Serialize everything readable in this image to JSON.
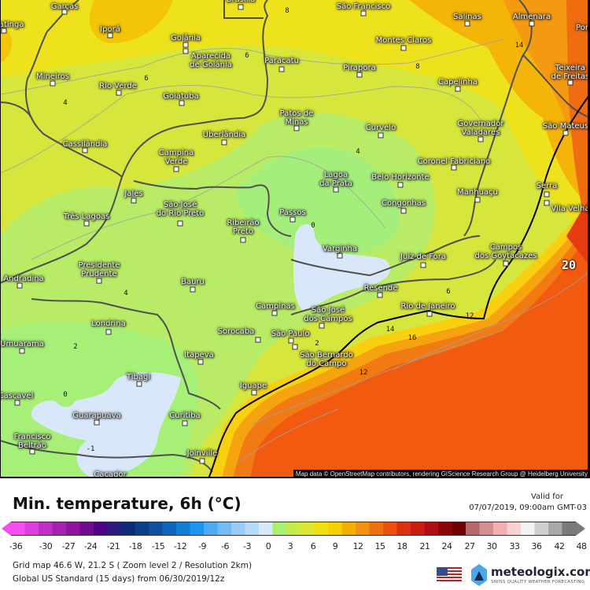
{
  "map": {
    "cities": [
      "Garças",
      "Iporá",
      "Goiânia",
      "Aparecida\nde Goiânia",
      "Paracatu",
      "Mineiros",
      "Rio Verde",
      "Goiatuba",
      "Uberlândia",
      "Cassilândia",
      "Campina\nVerde",
      "Jales",
      "Três Lagoas",
      "São José\ndo Rio Preto",
      "Ribeirão\nPreto",
      "Passos",
      "Brasília",
      "São Francisco",
      "Salinas",
      "Almenara",
      "Montes Claros",
      "Pirapora",
      "Capelinha",
      "Patos de\nMinas",
      "Curvelo",
      "Governador\nValadares",
      "Coronel Fabriciano",
      "Lagoa\nda Prata",
      "Belo Horizonte",
      "Congonhas",
      "Manhuaçu",
      "Serra",
      "Vila Velha",
      "São Mateus",
      "Teixeira\nde Freitas",
      "Porto",
      "Varginha",
      "Juiz de Fora",
      "Campos\ndos Goytacazes",
      "Resende",
      "Rio de Janeiro",
      "São José\ndos Campos",
      "São Paulo",
      "São Bernardo\ndo Campo",
      "Campinas",
      "Sorocaba",
      "Bauru",
      "Presidente\nPrudente",
      "Andradina",
      "Londrina",
      "Umuarama",
      "Itapeva",
      "Tibagi",
      "Iguape",
      "Cascavel",
      "Guarapuava",
      "Curitiba",
      "Francisco\nBeltrão",
      "Joinville",
      "Caçador",
      "Ipatinga"
    ],
    "contour_labels": [
      "8",
      "6",
      "6",
      "4",
      "8",
      "14",
      "4",
      "0",
      "4",
      "2",
      "0",
      "-1",
      "2",
      "6",
      "12",
      "14",
      "16",
      "12",
      "20"
    ],
    "attribution": "Map data © OpenStreetMap contributors, rendering GIScience Research Group @ Heidelberg University"
  },
  "header": {
    "title": "Min. temperature, 6h (°C)",
    "valid_label": "Valid for",
    "valid_date": "07/07/2019, 09:00am GMT-03"
  },
  "legend": {
    "ticks": [
      "-36",
      "-30",
      "-27",
      "-24",
      "-21",
      "-18",
      "-15",
      "-12",
      "-9",
      "-6",
      "-3",
      "0",
      "3",
      "6",
      "9",
      "12",
      "15",
      "18",
      "21",
      "24",
      "27",
      "30",
      "33",
      "36",
      "42",
      "48"
    ],
    "colors": [
      "#f24ef0",
      "#e03ee0",
      "#c42ec8",
      "#a820b0",
      "#8c149c",
      "#6e0c8c",
      "#4e0488",
      "#2a1a80",
      "#0e2a78",
      "#0e3e88",
      "#0e509e",
      "#0e66be",
      "#127ed8",
      "#1a96f0",
      "#4aaaf2",
      "#72bcf4",
      "#98ccf6",
      "#b8dcf8",
      "#d6eafa",
      "#a8f070",
      "#c4ec48",
      "#dce830",
      "#f0e010",
      "#f6d000",
      "#f4b000",
      "#f29010",
      "#f07010",
      "#ee5010",
      "#dc3010",
      "#c81c10",
      "#b00c14",
      "#8c0408",
      "#6e0000",
      "#b86868",
      "#d49090",
      "#eeb0b0",
      "#fad0d0",
      "#f2f2f2",
      "#cfcfcf",
      "#a8a8a8",
      "#7a7a7a"
    ]
  },
  "footer": {
    "grid_info": "Grid map 46.6 W, 21.2 S ( Zoom level 2 / Resolution 2km)",
    "model_info": "Global US Standard (15 days) from 06/30/2019/12z",
    "logo_text": "meteologix.com",
    "logo_tagline": "SWISS QUALITY WEATHER FORECASTING"
  }
}
